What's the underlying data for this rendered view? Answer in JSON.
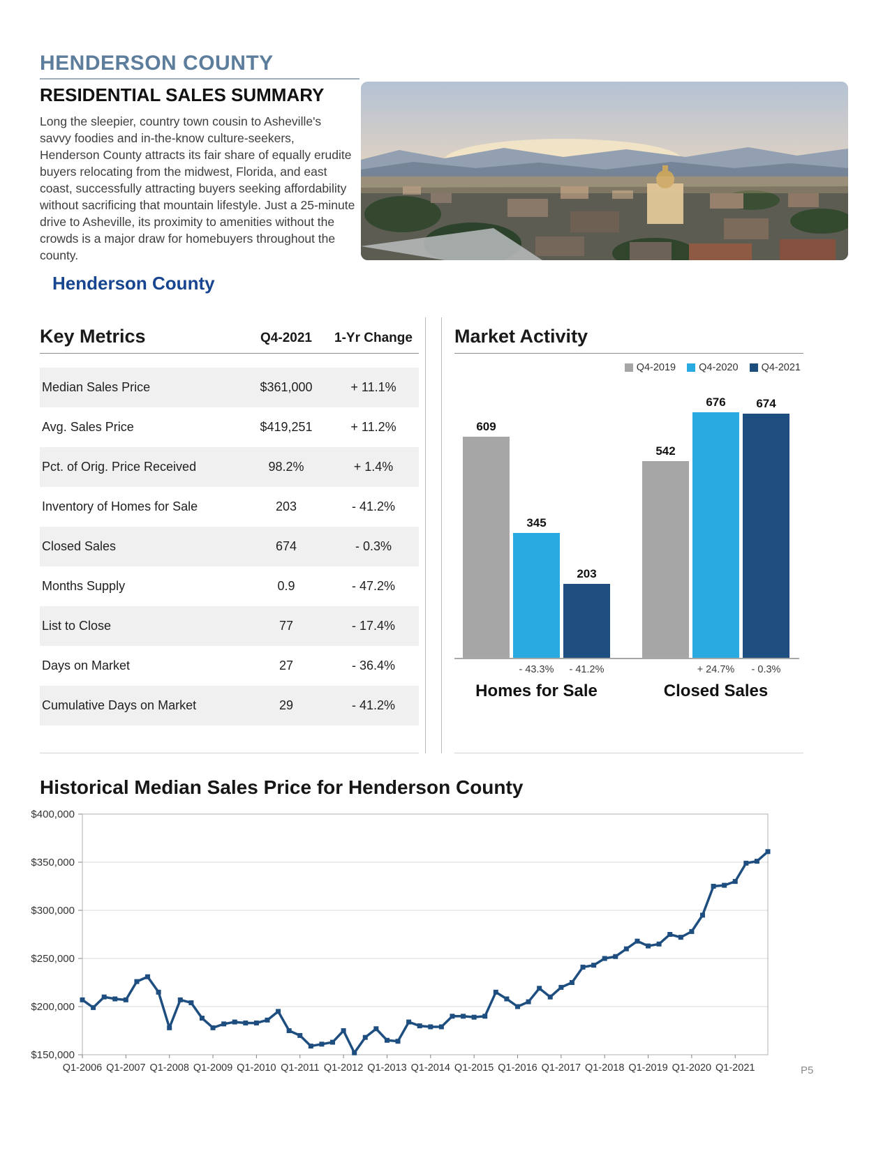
{
  "page": {
    "county_label": "HENDERSON COUNTY",
    "title": "RESIDENTIAL SALES SUMMARY",
    "intro": "Long the sleepier, country town cousin to Asheville's savvy foodies and in-the-know culture-seekers, Henderson County attracts its fair share of equally erudite buyers relocating from the midwest, Florida, and east coast, successfully attracting buyers seeking affordability without sacrificing that mountain lifestyle. Just a 25-minute drive to Asheville, its proximity to amenities without the crowds is a major draw for homebuyers throughout the county.",
    "section_heading": "Henderson County",
    "page_number": "P5"
  },
  "key_metrics": {
    "title": "Key Metrics",
    "col_value": "Q4-2021",
    "col_change": "1-Yr Change",
    "rows": [
      {
        "label": "Median Sales Price",
        "value": "$361,000",
        "change": "+ 11.1%"
      },
      {
        "label": "Avg. Sales Price",
        "value": "$419,251",
        "change": "+ 11.2%"
      },
      {
        "label": "Pct. of Orig. Price Received",
        "value": "98.2%",
        "change": "+ 1.4%"
      },
      {
        "label": "Inventory of Homes for Sale",
        "value": "203",
        "change": "- 41.2%"
      },
      {
        "label": "Closed Sales",
        "value": "674",
        "change": "- 0.3%"
      },
      {
        "label": "Months Supply",
        "value": "0.9",
        "change": "- 47.2%"
      },
      {
        "label": "List to Close",
        "value": "77",
        "change": "- 17.4%"
      },
      {
        "label": "Days on Market",
        "value": "27",
        "change": "- 36.4%"
      },
      {
        "label": "Cumulative Days on Market",
        "value": "29",
        "change": "- 41.2%"
      }
    ]
  },
  "chart_data": [
    {
      "type": "bar",
      "title": "Market Activity",
      "series": [
        "Q4-2019",
        "Q4-2020",
        "Q4-2021"
      ],
      "series_colors": [
        "#a6a6a6",
        "#29abe2",
        "#1e4e80"
      ],
      "groups": [
        {
          "category": "Homes for Sale",
          "values": [
            609,
            345,
            203
          ],
          "change_labels": [
            "",
            "- 43.3%",
            "- 41.2%"
          ]
        },
        {
          "category": "Closed Sales",
          "values": [
            542,
            676,
            674
          ],
          "change_labels": [
            "",
            "+ 24.7%",
            "- 0.3%"
          ]
        }
      ],
      "ylim": [
        0,
        700
      ],
      "legend_position": "top-right",
      "value_labels": true
    },
    {
      "type": "line",
      "title": "Historical Median Sales Price for Henderson County",
      "x": [
        "Q1-2006",
        "Q2-2006",
        "Q3-2006",
        "Q4-2006",
        "Q1-2007",
        "Q2-2007",
        "Q3-2007",
        "Q4-2007",
        "Q1-2008",
        "Q2-2008",
        "Q3-2008",
        "Q4-2008",
        "Q1-2009",
        "Q2-2009",
        "Q3-2009",
        "Q4-2009",
        "Q1-2010",
        "Q2-2010",
        "Q3-2010",
        "Q4-2010",
        "Q1-2011",
        "Q2-2011",
        "Q3-2011",
        "Q4-2011",
        "Q1-2012",
        "Q2-2012",
        "Q3-2012",
        "Q4-2012",
        "Q1-2013",
        "Q2-2013",
        "Q3-2013",
        "Q4-2013",
        "Q1-2014",
        "Q2-2014",
        "Q3-2014",
        "Q4-2014",
        "Q1-2015",
        "Q2-2015",
        "Q3-2015",
        "Q4-2015",
        "Q1-2016",
        "Q2-2016",
        "Q3-2016",
        "Q4-2016",
        "Q1-2017",
        "Q2-2017",
        "Q3-2017",
        "Q4-2017",
        "Q1-2018",
        "Q2-2018",
        "Q3-2018",
        "Q4-2018",
        "Q1-2019",
        "Q2-2019",
        "Q3-2019",
        "Q4-2019",
        "Q1-2020",
        "Q2-2020",
        "Q3-2020",
        "Q4-2020",
        "Q1-2021",
        "Q2-2021",
        "Q3-2021",
        "Q4-2021"
      ],
      "values": [
        207000,
        199000,
        210000,
        208000,
        207000,
        226000,
        231000,
        215000,
        178000,
        207000,
        204000,
        188000,
        178000,
        182000,
        184000,
        183000,
        183000,
        186000,
        195000,
        175000,
        170000,
        159000,
        161000,
        163000,
        175000,
        152000,
        168000,
        177000,
        165000,
        164000,
        184000,
        180000,
        179000,
        179000,
        190000,
        190000,
        189000,
        190000,
        215000,
        208000,
        200000,
        205000,
        219000,
        210000,
        220000,
        225000,
        241000,
        243000,
        250000,
        252000,
        260000,
        268000,
        263000,
        265000,
        275000,
        272000,
        278000,
        295000,
        325000,
        326000,
        330000,
        349000,
        351000,
        361000
      ],
      "x_tick_every": 4,
      "ylim": [
        150000,
        400000
      ],
      "y_ticks": [
        150000,
        200000,
        250000,
        300000,
        350000,
        400000
      ],
      "y_tick_labels": [
        "$150,000",
        "$200,000",
        "$250,000",
        "$300,000",
        "$350,000",
        "$400,000"
      ],
      "line_color": "#1e4e80",
      "marker": "square",
      "grid": true
    }
  ]
}
